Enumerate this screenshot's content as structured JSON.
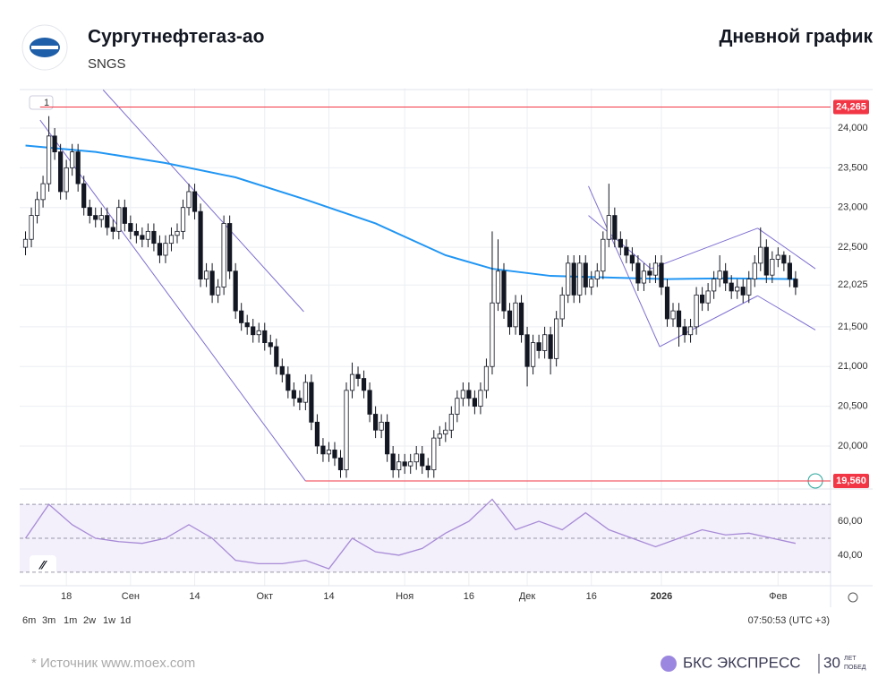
{
  "header": {
    "title": "Сургутнефтегаз-ао",
    "ticker": "SNGS",
    "right": "Дневной график"
  },
  "toolbar": {
    "badge": "1",
    "timeframes": [
      "6m",
      "3m",
      "1m",
      "2w",
      "1w",
      "1d"
    ],
    "time": "07:50:53 (UTC +3)"
  },
  "footer": {
    "source": "*  Источник www.moex.com",
    "brand": "БКС ЭКСПРЕСС",
    "years": "30",
    "years_word1": "ЛЕТ",
    "years_word2": "ПОБЕД"
  },
  "chart_data": {
    "type": "candlestick",
    "up_color": "#ffffff",
    "down_color": "#131722",
    "open": [
      22500,
      22600,
      22900,
      23100,
      23300,
      23900,
      23700,
      23200,
      23500,
      23700,
      23300,
      23000,
      22900,
      22850,
      22900,
      22750,
      22700,
      23000,
      22800,
      22700,
      22650,
      22600,
      22700,
      22550,
      22400,
      22550,
      22650,
      22700,
      23000,
      23200,
      22950,
      22100,
      22200,
      21900,
      22000,
      22800,
      22200,
      21700,
      21550,
      21500,
      21400,
      21450,
      21300,
      21250,
      21000,
      20900,
      20700,
      20600,
      20550,
      20800,
      20300,
      20000,
      19900,
      19950,
      19850,
      19700,
      20700,
      20900,
      20850,
      20700,
      20400,
      20200,
      20300,
      19900,
      19700,
      19800,
      19750,
      19800,
      19900,
      19750,
      19700,
      20100,
      20150,
      20200,
      20400,
      20600,
      20700,
      20600,
      20500,
      20700,
      21000,
      21800,
      22200,
      21700,
      21500,
      21800,
      21400,
      21000,
      21300,
      21200,
      21400,
      21100,
      21600,
      21900,
      22300,
      21900,
      22300,
      22000,
      22100,
      22200,
      22600,
      22900,
      22600,
      22500,
      22400,
      22300,
      22050,
      22200,
      22150,
      22300,
      22000,
      21600,
      21700,
      21500,
      21400,
      21500,
      21900,
      21800,
      21950,
      22100,
      22200,
      22050,
      21950,
      22000,
      21900,
      22100,
      22300,
      22500,
      22150,
      22350,
      22400,
      22300,
      22100
    ],
    "high": [
      22700,
      23000,
      23200,
      23400,
      24150,
      24000,
      23800,
      23600,
      23800,
      23800,
      23400,
      23100,
      23000,
      23000,
      23000,
      22850,
      23100,
      23100,
      22900,
      22800,
      22750,
      22800,
      22800,
      22650,
      22650,
      22750,
      22800,
      23100,
      23300,
      23300,
      23050,
      22300,
      22300,
      22100,
      22900,
      22900,
      22300,
      21800,
      21650,
      21600,
      21550,
      21550,
      21400,
      21350,
      21100,
      21000,
      20800,
      20700,
      20900,
      20900,
      20400,
      20100,
      20050,
      20050,
      19950,
      20800,
      21050,
      21000,
      20950,
      20800,
      20500,
      20400,
      20400,
      20000,
      19900,
      19900,
      19900,
      20000,
      20000,
      19850,
      20200,
      20250,
      20300,
      20500,
      20700,
      20800,
      20800,
      20700,
      20800,
      21100,
      22700,
      22600,
      22300,
      21800,
      21900,
      21900,
      21500,
      21400,
      21400,
      21500,
      21500,
      21700,
      22000,
      22400,
      22400,
      22400,
      22400,
      22200,
      22300,
      22700,
      23300,
      23000,
      22700,
      22600,
      22500,
      22400,
      22300,
      22300,
      22400,
      22400,
      22100,
      21800,
      21800,
      21600,
      21600,
      22000,
      22000,
      22050,
      22200,
      22400,
      22300,
      22150,
      22100,
      22100,
      22200,
      22400,
      22750,
      22600,
      22450,
      22500,
      22450,
      22400,
      22200
    ],
    "low": [
      22400,
      22500,
      22800,
      23000,
      23200,
      23600,
      23100,
      23100,
      23400,
      23200,
      22900,
      22800,
      22750,
      22750,
      22650,
      22600,
      22600,
      22700,
      22600,
      22550,
      22500,
      22500,
      22450,
      22300,
      22300,
      22450,
      22550,
      22600,
      22900,
      22850,
      22000,
      22000,
      21800,
      21800,
      21900,
      22100,
      21600,
      21450,
      21400,
      21300,
      21300,
      21200,
      21150,
      20900,
      20800,
      20600,
      20500,
      20450,
      20450,
      20200,
      19900,
      19800,
      19800,
      19750,
      19600,
      19600,
      20600,
      20750,
      20600,
      20300,
      20100,
      20100,
      19800,
      19600,
      19600,
      19650,
      19650,
      19700,
      19650,
      19600,
      19600,
      20000,
      20050,
      20100,
      20300,
      20500,
      20500,
      20400,
      20400,
      20600,
      20900,
      21700,
      21600,
      21400,
      21400,
      21300,
      20750,
      20900,
      21100,
      21100,
      20900,
      21000,
      21500,
      21800,
      21800,
      21800,
      21900,
      21900,
      22000,
      22100,
      22500,
      22500,
      22400,
      22300,
      22200,
      21950,
      21950,
      22050,
      22050,
      21900,
      21500,
      21500,
      21250,
      21300,
      21300,
      21400,
      21700,
      21700,
      21850,
      22000,
      21950,
      21850,
      21850,
      21800,
      21800,
      22000,
      22200,
      22050,
      22050,
      22250,
      22200,
      22000,
      21900
    ],
    "close": [
      22600,
      22900,
      23100,
      23300,
      23900,
      23700,
      23200,
      23500,
      23700,
      23300,
      23000,
      22900,
      22850,
      22900,
      22750,
      22700,
      23000,
      22800,
      22700,
      22650,
      22600,
      22700,
      22550,
      22400,
      22550,
      22650,
      22700,
      23000,
      23200,
      22950,
      22100,
      22200,
      21900,
      22000,
      22800,
      22200,
      21700,
      21550,
      21500,
      21400,
      21450,
      21300,
      21250,
      21000,
      20900,
      20700,
      20600,
      20550,
      20800,
      20300,
      20000,
      19900,
      19950,
      19850,
      19700,
      20700,
      20900,
      20850,
      20700,
      20400,
      20200,
      20300,
      19900,
      19700,
      19800,
      19750,
      19800,
      19900,
      19750,
      19700,
      20100,
      20150,
      20200,
      20400,
      20600,
      20700,
      20600,
      20500,
      20700,
      21000,
      21800,
      22200,
      21700,
      21500,
      21800,
      21400,
      21000,
      21300,
      21200,
      21400,
      21100,
      21600,
      21900,
      22300,
      21900,
      22300,
      22000,
      22100,
      22200,
      22600,
      22900,
      22600,
      22500,
      22400,
      22300,
      22050,
      22200,
      22150,
      22300,
      22000,
      21600,
      21700,
      21500,
      21400,
      21500,
      21900,
      21800,
      21950,
      22100,
      22200,
      22050,
      21950,
      22000,
      21900,
      22100,
      22300,
      22500,
      22150,
      22350,
      22400,
      22300,
      22100,
      22000
    ],
    "ma": {
      "color": "#2196f3",
      "x": [
        0,
        12,
        24,
        36,
        48,
        60,
        72,
        80,
        90,
        100,
        110,
        120,
        132
      ],
      "values": [
        23780,
        23700,
        23560,
        23380,
        23100,
        22800,
        22400,
        22230,
        22140,
        22120,
        22100,
        22110,
        22100
      ]
    },
    "hlines": [
      {
        "value": 24265,
        "label": "24,265",
        "x_start": 2.5,
        "color": "#f23645"
      },
      {
        "value": 19560,
        "label": "19,560",
        "x_start": 48,
        "color": "#f23645"
      }
    ],
    "trendlines": [
      {
        "x": [
          2.5,
          48
        ],
        "y": [
          24100,
          19560
        ]
      },
      {
        "x": [
          13.3,
          47.7
        ],
        "y": [
          24480,
          21690
        ]
      },
      {
        "x": [
          96.5,
          108.7
        ],
        "y": [
          23270,
          21250
        ]
      },
      {
        "x": [
          96.5,
          107.2
        ],
        "y": [
          22900,
          22230
        ]
      },
      {
        "x": [
          107.2,
          125.5
        ],
        "y": [
          22230,
          22740
        ]
      },
      {
        "x": [
          108.7,
          125.5
        ],
        "y": [
          21250,
          21890
        ]
      },
      {
        "x": [
          125.5,
          135.4
        ],
        "y": [
          22740,
          22230
        ]
      },
      {
        "x": [
          125.5,
          135.4
        ],
        "y": [
          21890,
          21460
        ]
      }
    ],
    "trend_color": "#7e6fd1",
    "xlim": [
      -1,
      138
    ],
    "ylim": [
      19450,
      24500
    ],
    "xticks": [
      {
        "value": 7,
        "label": "18"
      },
      {
        "value": 18,
        "label": "Сен"
      },
      {
        "value": 29,
        "label": "14"
      },
      {
        "value": 41,
        "label": "Окт"
      },
      {
        "value": 52,
        "label": "14"
      },
      {
        "value": 65,
        "label": "Ноя"
      },
      {
        "value": 76,
        "label": "16"
      },
      {
        "value": 86,
        "label": "Дек"
      },
      {
        "value": 97,
        "label": "16"
      },
      {
        "value": 109,
        "label": "2026"
      },
      {
        "value": 129,
        "label": "Фев"
      }
    ],
    "yticks": [
      {
        "value": 20000,
        "label": "20,000"
      },
      {
        "value": 20500,
        "label": "20,500"
      },
      {
        "value": 21000,
        "label": "21,000"
      },
      {
        "value": 21500,
        "label": "21,500"
      },
      {
        "value": 22025,
        "label": "22,025"
      },
      {
        "value": 22500,
        "label": "22,500"
      },
      {
        "value": 23000,
        "label": "23,000"
      },
      {
        "value": 23500,
        "label": "23,500"
      },
      {
        "value": 24000,
        "label": "24,000"
      }
    ],
    "rsi": {
      "color": "#a78bd6",
      "x": [
        0,
        4,
        8,
        12,
        16,
        20,
        24,
        28,
        32,
        36,
        40,
        44,
        48,
        52,
        56,
        60,
        64,
        68,
        72,
        76,
        80,
        84,
        88,
        92,
        96,
        100,
        104,
        108,
        112,
        116,
        120,
        124,
        128,
        132
      ],
      "values": [
        50,
        70,
        58,
        50,
        48,
        47,
        50,
        58,
        50,
        37,
        35,
        35,
        37,
        32,
        50,
        42,
        40,
        44,
        53,
        60,
        73,
        55,
        60,
        55,
        65,
        55,
        50,
        45,
        50,
        55,
        52,
        53,
        50,
        47
      ],
      "ylim": [
        22,
        78
      ],
      "levels": [
        30,
        50,
        70
      ],
      "yticks": [
        {
          "value": 40,
          "label": "40,00"
        },
        {
          "value": 60,
          "label": "60,00"
        }
      ]
    }
  }
}
